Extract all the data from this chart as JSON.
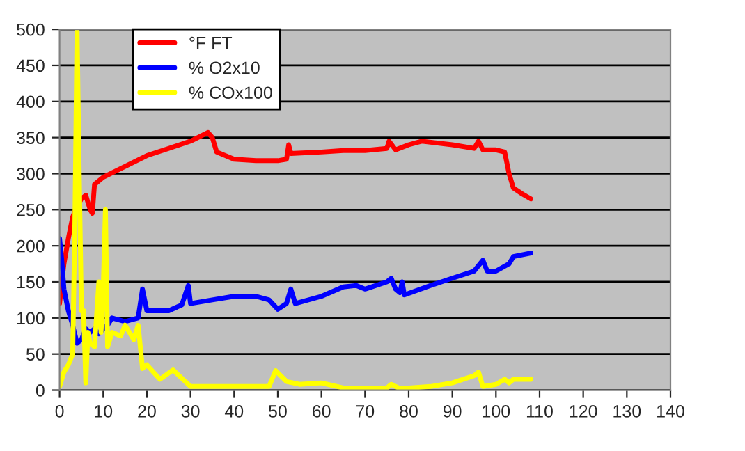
{
  "chart_data": {
    "type": "line",
    "xlim": [
      0,
      140
    ],
    "xticks": [
      0,
      10,
      20,
      30,
      40,
      50,
      60,
      70,
      80,
      90,
      100,
      110,
      120,
      130,
      140
    ],
    "ylim": [
      0,
      500
    ],
    "yticks": [
      0,
      50,
      100,
      150,
      200,
      250,
      300,
      350,
      400,
      450,
      500
    ],
    "grid": "y",
    "legend": "top left",
    "marker": "none",
    "line_style": "solid",
    "series": [
      {
        "name": "°F FT",
        "color": "#ff0000",
        "x": [
          0,
          0.5,
          1,
          2,
          3,
          4,
          5,
          6,
          7,
          7.5,
          8,
          10,
          15,
          20,
          25,
          30,
          34,
          35,
          36,
          40,
          45,
          50,
          52,
          52.5,
          53,
          60,
          65,
          70,
          75,
          75.5,
          77,
          80,
          83,
          90,
          95,
          96,
          97,
          100,
          102,
          103,
          104,
          106,
          108
        ],
        "values": [
          120,
          150,
          175,
          210,
          240,
          255,
          265,
          270,
          250,
          245,
          285,
          295,
          310,
          325,
          335,
          345,
          357,
          350,
          330,
          320,
          318,
          318,
          320,
          340,
          328,
          330,
          332,
          332,
          335,
          345,
          333,
          340,
          345,
          340,
          335,
          345,
          333,
          333,
          330,
          300,
          280,
          272,
          265
        ]
      },
      {
        "name": "% O2x10",
        "color": "#0000ff",
        "x": [
          0,
          0.5,
          1,
          2,
          3,
          4,
          5,
          6,
          7,
          8,
          9,
          10,
          11,
          12,
          15,
          18,
          19,
          20,
          25,
          28,
          29.5,
          30,
          35,
          40,
          45,
          48,
          50,
          52,
          53,
          54,
          60,
          65,
          68,
          70,
          75,
          76,
          77,
          78,
          78.5,
          79,
          85,
          90,
          95,
          97,
          98,
          100,
          103,
          104,
          108
        ],
        "values": [
          210,
          180,
          140,
          110,
          90,
          65,
          70,
          85,
          80,
          85,
          78,
          85,
          90,
          100,
          95,
          100,
          140,
          110,
          110,
          118,
          145,
          120,
          125,
          130,
          130,
          125,
          112,
          120,
          140,
          120,
          130,
          143,
          145,
          140,
          150,
          155,
          140,
          135,
          150,
          132,
          145,
          155,
          165,
          180,
          165,
          165,
          175,
          185,
          190
        ]
      },
      {
        "name": "% COx100",
        "color": "#ffff00",
        "x": [
          0,
          1,
          2,
          3,
          3.5,
          4,
          4.5,
          5,
          5.5,
          6,
          6.5,
          7,
          8,
          9,
          9.5,
          10,
          10.5,
          11,
          12,
          14,
          15,
          17,
          18,
          19,
          20,
          23,
          26,
          30,
          40,
          48,
          49.5,
          52,
          55,
          60,
          65,
          75,
          76,
          78,
          85,
          90,
          95,
          96,
          97,
          100,
          102,
          103,
          104,
          108
        ],
        "values": [
          5,
          25,
          35,
          50,
          230,
          500,
          300,
          110,
          110,
          10,
          80,
          65,
          60,
          150,
          80,
          140,
          250,
          60,
          80,
          75,
          90,
          70,
          90,
          30,
          35,
          15,
          28,
          5,
          5,
          5,
          27,
          12,
          8,
          10,
          3,
          3,
          8,
          2,
          5,
          10,
          20,
          25,
          5,
          8,
          15,
          10,
          15,
          15
        ]
      }
    ]
  }
}
